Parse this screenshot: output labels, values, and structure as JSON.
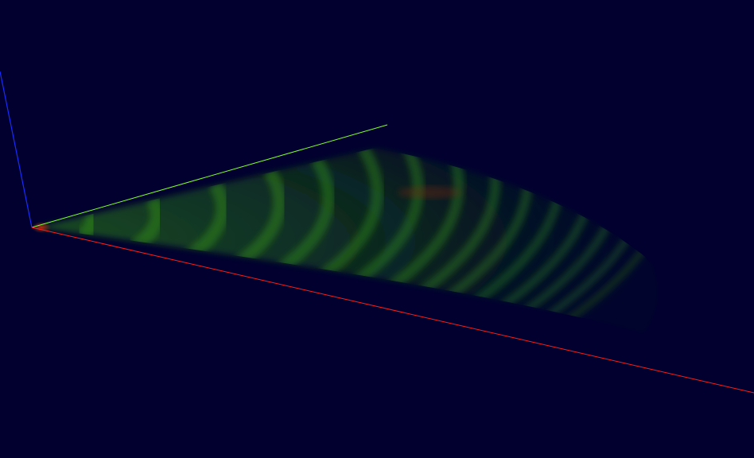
{
  "scene": {
    "background_color": "#01002f",
    "axes": {
      "x_axis_color": "#ff1a1a",
      "y_axis_color": "#7cff2a",
      "z_axis_color": "#1a2bff"
    },
    "volume": {
      "primary_color": "#2f8a14",
      "highlight_color": "#8a2a14"
    }
  }
}
